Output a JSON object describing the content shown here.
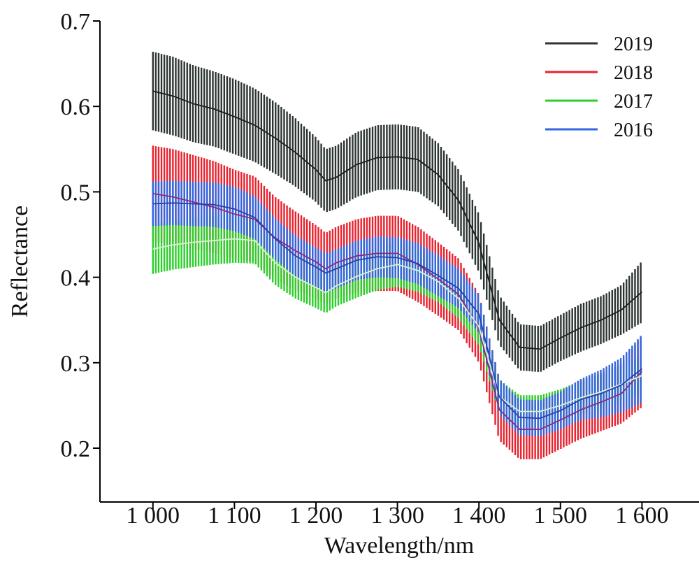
{
  "chart_data": {
    "type": "line",
    "xlabel": "Wavelength/nm",
    "ylabel": "Reflectance",
    "xlim": [
      935,
      1670
    ],
    "ylim": [
      0.137,
      0.7
    ],
    "x_ticks": [
      1000,
      1100,
      1200,
      1300,
      1400,
      1500,
      1600
    ],
    "x_tick_labels": [
      "1 000",
      "1 100",
      "1 200",
      "1 300",
      "1 400",
      "1 500",
      "1 600"
    ],
    "y_ticks": [
      0.2,
      0.3,
      0.4,
      0.5,
      0.6,
      0.7
    ],
    "y_tick_labels": [
      "0.2",
      "0.3",
      "0.4",
      "0.5",
      "0.6",
      "0.7"
    ],
    "error_bars": true,
    "legend_position": "top-right",
    "x": [
      1000,
      1025,
      1050,
      1075,
      1100,
      1125,
      1150,
      1175,
      1200,
      1212,
      1225,
      1250,
      1275,
      1300,
      1325,
      1350,
      1375,
      1400,
      1425,
      1450,
      1475,
      1500,
      1525,
      1550,
      1575,
      1600
    ],
    "series": [
      {
        "name": "2019",
        "color": "#2d3533",
        "values": [
          0.618,
          0.612,
          0.603,
          0.597,
          0.588,
          0.578,
          0.563,
          0.546,
          0.526,
          0.513,
          0.517,
          0.532,
          0.54,
          0.541,
          0.538,
          0.52,
          0.49,
          0.44,
          0.35,
          0.318,
          0.316,
          0.329,
          0.341,
          0.35,
          0.362,
          0.383
        ],
        "error": [
          0.046,
          0.046,
          0.045,
          0.044,
          0.044,
          0.043,
          0.042,
          0.04,
          0.038,
          0.037,
          0.037,
          0.038,
          0.038,
          0.038,
          0.038,
          0.037,
          0.036,
          0.034,
          0.029,
          0.027,
          0.027,
          0.027,
          0.028,
          0.028,
          0.029,
          0.036
        ]
      },
      {
        "name": "2018",
        "color": "#e8222e",
        "values": [
          0.498,
          0.494,
          0.488,
          0.482,
          0.474,
          0.468,
          0.446,
          0.431,
          0.418,
          0.41,
          0.417,
          0.425,
          0.428,
          0.428,
          0.415,
          0.398,
          0.38,
          0.34,
          0.245,
          0.222,
          0.222,
          0.233,
          0.245,
          0.254,
          0.264,
          0.29
        ],
        "error": [
          0.056,
          0.056,
          0.055,
          0.054,
          0.052,
          0.05,
          0.048,
          0.046,
          0.043,
          0.042,
          0.042,
          0.043,
          0.044,
          0.044,
          0.044,
          0.043,
          0.042,
          0.04,
          0.036,
          0.035,
          0.035,
          0.034,
          0.034,
          0.034,
          0.035,
          0.042
        ]
      },
      {
        "name": "2017",
        "color": "#2bcf2a",
        "values": [
          0.433,
          0.438,
          0.441,
          0.443,
          0.445,
          0.443,
          0.417,
          0.4,
          0.388,
          0.382,
          0.39,
          0.401,
          0.41,
          0.415,
          0.408,
          0.395,
          0.375,
          0.342,
          0.26,
          0.243,
          0.243,
          0.25,
          0.259,
          0.266,
          0.275,
          0.285
        ],
        "error": [
          0.029,
          0.029,
          0.029,
          0.028,
          0.028,
          0.027,
          0.026,
          0.025,
          0.024,
          0.024,
          0.024,
          0.025,
          0.025,
          0.026,
          0.025,
          0.024,
          0.023,
          0.022,
          0.02,
          0.019,
          0.019,
          0.019,
          0.02,
          0.02,
          0.021,
          0.022
        ]
      },
      {
        "name": "2016",
        "color": "#3266e0",
        "values": [
          0.486,
          0.487,
          0.486,
          0.485,
          0.48,
          0.47,
          0.445,
          0.425,
          0.412,
          0.405,
          0.41,
          0.42,
          0.424,
          0.423,
          0.416,
          0.402,
          0.387,
          0.357,
          0.26,
          0.236,
          0.235,
          0.244,
          0.257,
          0.264,
          0.274,
          0.293
        ],
        "error": [
          0.026,
          0.026,
          0.026,
          0.026,
          0.026,
          0.025,
          0.024,
          0.024,
          0.023,
          0.023,
          0.023,
          0.023,
          0.024,
          0.024,
          0.024,
          0.024,
          0.023,
          0.022,
          0.021,
          0.021,
          0.021,
          0.022,
          0.024,
          0.028,
          0.032,
          0.04
        ]
      }
    ]
  }
}
